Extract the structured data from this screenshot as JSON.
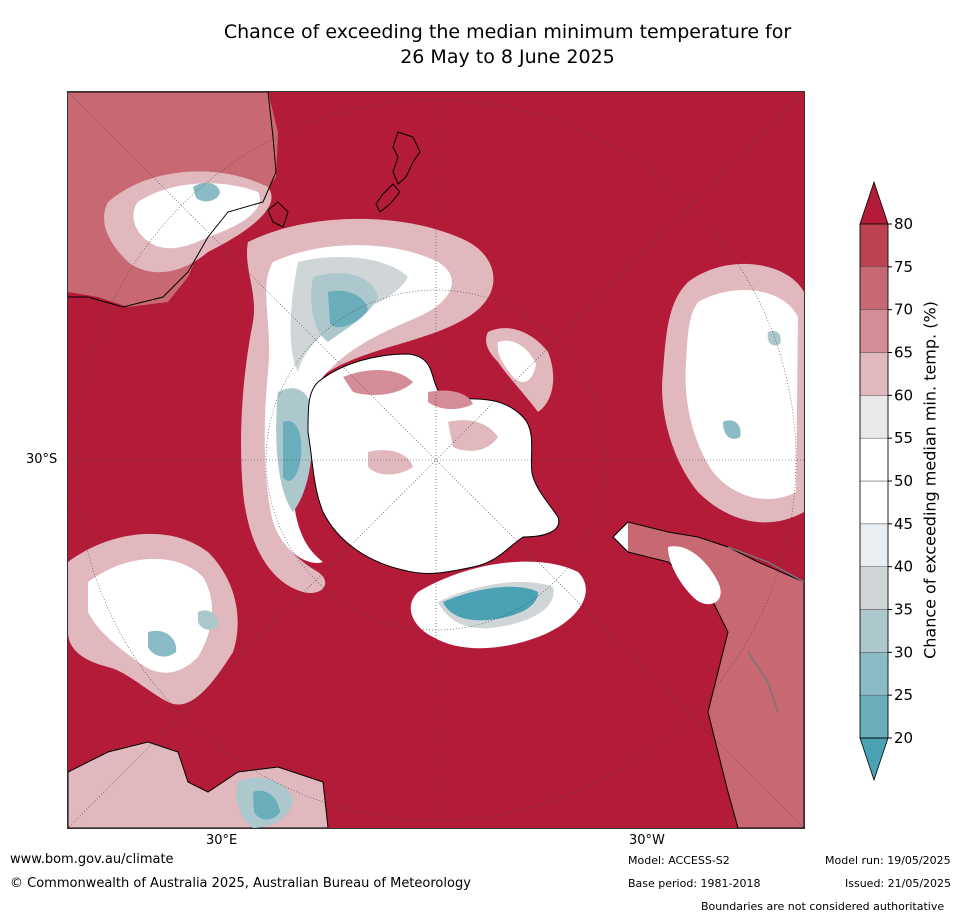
{
  "title_line1": "Chance of exceeding the median minimum temperature for",
  "title_line2": "26 May to 8 June 2025",
  "axis_labels": {
    "lat_30s": "30°S",
    "lon_30e": "30°E",
    "lon_30w": "30°W"
  },
  "colorbar": {
    "title": "Chance of exceeding median min. temp. (%)",
    "ticks": [
      "20",
      "25",
      "30",
      "35",
      "40",
      "45",
      "50",
      "55",
      "60",
      "65",
      "70",
      "75",
      "80"
    ],
    "bands": [
      "#4aa1b3",
      "#6aaebc",
      "#8bbcc6",
      "#acc8cd",
      "#d0d6d8",
      "#e8eef1",
      "#ffffff",
      "#ffffff",
      "#ebe8e8",
      "#e0b8bd",
      "#d48d97",
      "#c86872",
      "#bd4353",
      "#b31b38"
    ]
  },
  "footer": {
    "url": "www.bom.gov.au/climate",
    "copyright": "© Commonwealth of Australia 2025, Australian Bureau of Meteorology",
    "model": "Model: ACCESS-S2",
    "base_period": "Base period: 1981-2018",
    "model_run": "Model run: 19/05/2025",
    "issued": "Issued: 21/05/2025",
    "disclaimer": "Boundaries are not considered authoritative"
  }
}
